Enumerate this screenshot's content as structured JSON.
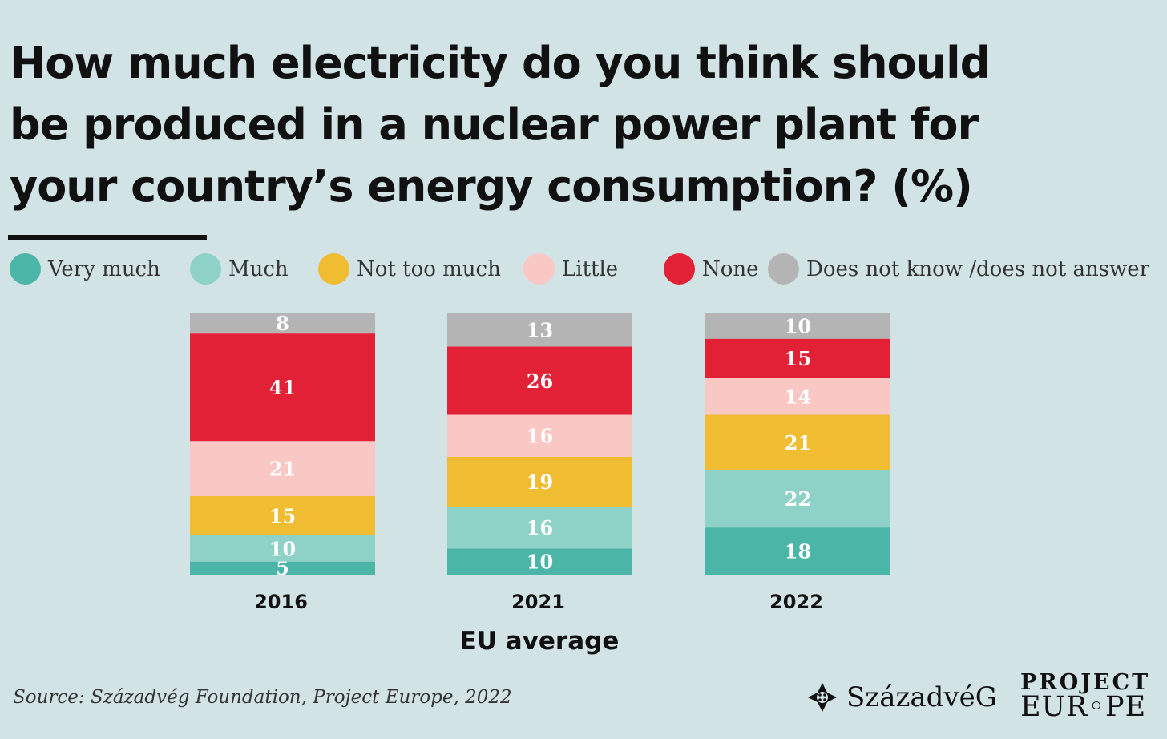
{
  "colors": {
    "background": "#d2e3e6",
    "very_much": "#4bb5a7",
    "much": "#8ed2c7",
    "not_too_much": "#f0bc31",
    "little": "#f9c7c4",
    "none": "#e22137",
    "dk": "#b4b4b4"
  },
  "chart_data": {
    "type": "bar",
    "stacked": true,
    "title": "How much electricity do you think should be produced in a nuclear power plant for your country’s energy consumption? (%)",
    "xlabel": "EU average",
    "ylabel": "",
    "ylim": [
      0,
      100
    ],
    "legend_position": "top",
    "categories": [
      "2016",
      "2021",
      "2022"
    ],
    "series": [
      {
        "name": "Very much",
        "color": "#4bb5a7",
        "values": [
          5,
          10,
          18
        ]
      },
      {
        "name": "Much",
        "color": "#8ed2c7",
        "values": [
          10,
          16,
          22
        ]
      },
      {
        "name": "Not too much",
        "color": "#f0bc31",
        "values": [
          15,
          19,
          21
        ]
      },
      {
        "name": "Little",
        "color": "#f9c7c4",
        "values": [
          21,
          16,
          14
        ]
      },
      {
        "name": "None",
        "color": "#e22137",
        "values": [
          41,
          26,
          15
        ]
      },
      {
        "name": "Does not know /does not answer",
        "color": "#b4b4b4",
        "values": [
          8,
          13,
          10
        ]
      }
    ]
  },
  "source": "Source: Századvég Foundation, Project Europe, 2022",
  "logos": {
    "szazadveg": "SzázadvéG",
    "project_europe_line1": "PROJECT",
    "project_europe_line2": "EUR◦PE"
  }
}
